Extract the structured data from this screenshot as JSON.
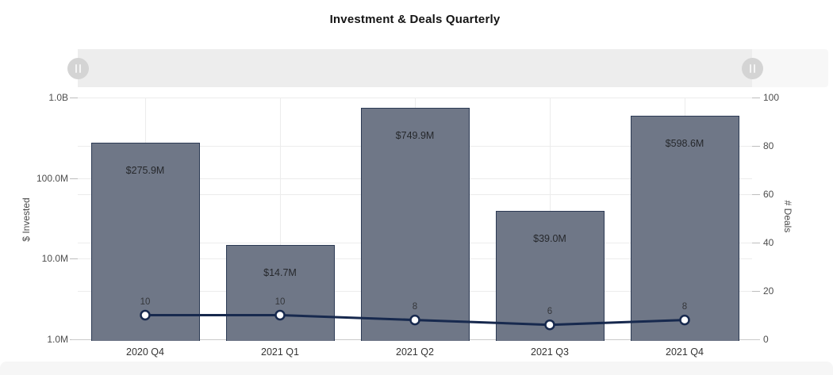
{
  "title": "Investment & Deals Quarterly",
  "slider": {
    "left_handle_icon": "pause-grip-icon",
    "right_handle_icon": "pause-grip-icon"
  },
  "chart_data": {
    "type": "combo bar+line",
    "title": "Investment & Deals Quarterly",
    "categories": [
      "2020 Q4",
      "2021 Q1",
      "2021 Q2",
      "2021 Q3",
      "2021 Q4"
    ],
    "series": [
      {
        "name": "$ Invested",
        "type": "bar",
        "axis": "left",
        "values": [
          275900000,
          14700000,
          749900000,
          39000000,
          598600000
        ],
        "value_labels": [
          "$275.9M",
          "$14.7M",
          "$749.9M",
          "$39.0M",
          "$598.6M"
        ]
      },
      {
        "name": "# Deals",
        "type": "line",
        "axis": "right",
        "values": [
          10,
          10,
          8,
          6,
          8
        ],
        "point_labels": [
          "10",
          "10",
          "8",
          "6",
          "8"
        ]
      }
    ],
    "left_axis": {
      "title": "$ Invested",
      "scale": "log",
      "min": 1000000,
      "max": 1000000000,
      "ticks": [
        {
          "value": 1000000000,
          "label": "1.0B"
        },
        {
          "value": 100000000,
          "label": "100.0M"
        },
        {
          "value": 10000000,
          "label": "10.0M"
        },
        {
          "value": 1000000,
          "label": "1.0M"
        }
      ]
    },
    "right_axis": {
      "title": "# Deals",
      "scale": "linear",
      "min": 0,
      "max": 100,
      "ticks": [
        {
          "value": 100,
          "label": "100"
        },
        {
          "value": 80,
          "label": "80"
        },
        {
          "value": 60,
          "label": "60"
        },
        {
          "value": 40,
          "label": "40"
        },
        {
          "value": 20,
          "label": "20"
        },
        {
          "value": 0,
          "label": "0"
        }
      ]
    },
    "grid": true,
    "legend": "none"
  },
  "colors": {
    "bar_fill": "#6f7787",
    "bar_border": "#2c3a54",
    "line": "#17294e",
    "marker_fill": "#ffffff",
    "grid": "#ececec",
    "axis_line": "#c9c9c9",
    "slider_track": "#ededed",
    "slider_handle": "#d4d4d4",
    "footer": "#f6f6f6"
  }
}
